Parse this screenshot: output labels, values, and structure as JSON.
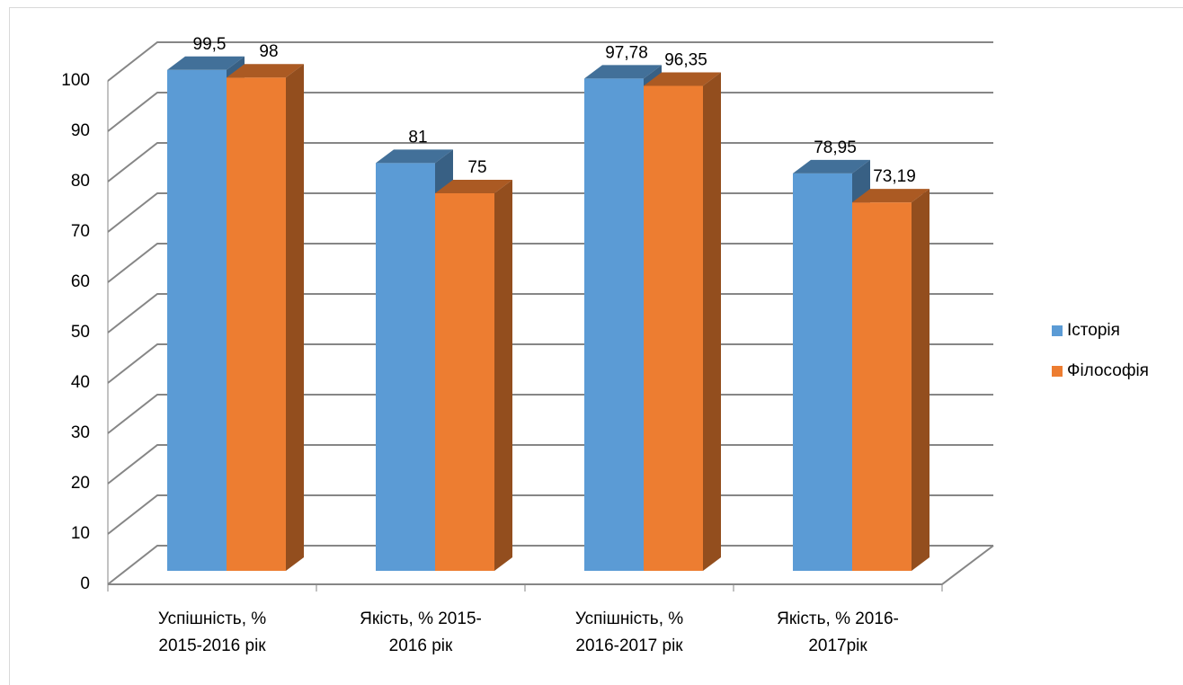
{
  "chart_data": {
    "type": "bar3d",
    "categories": [
      "Успішність, %\n2015-2016 рік",
      "Якість, % 2015-\n2016 рік",
      "Успішність, %\n2016-2017 рік",
      "Якість, % 2016-\n2017рік"
    ],
    "series": [
      {
        "name": "Історія",
        "color": "#5b9bd5",
        "values": [
          99.5,
          81,
          97.78,
          78.95
        ],
        "value_labels": [
          "99,5",
          "81",
          "97,78",
          "78,95"
        ]
      },
      {
        "name": "Філософія",
        "color": "#ed7d31",
        "values": [
          98,
          75,
          96.35,
          73.19
        ],
        "value_labels": [
          "98",
          "75",
          "96,35",
          "73,19"
        ]
      }
    ],
    "ylim": [
      0,
      100
    ],
    "yticks": [
      0,
      10,
      20,
      30,
      40,
      50,
      60,
      70,
      80,
      90,
      100
    ],
    "grid": true,
    "legend": "right"
  }
}
